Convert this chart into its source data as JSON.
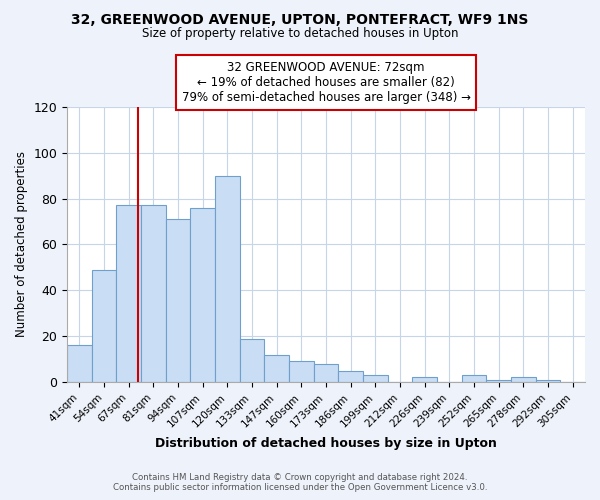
{
  "title": "32, GREENWOOD AVENUE, UPTON, PONTEFRACT, WF9 1NS",
  "subtitle": "Size of property relative to detached houses in Upton",
  "xlabel": "Distribution of detached houses by size in Upton",
  "ylabel": "Number of detached properties",
  "bar_labels": [
    "41sqm",
    "54sqm",
    "67sqm",
    "81sqm",
    "94sqm",
    "107sqm",
    "120sqm",
    "133sqm",
    "147sqm",
    "160sqm",
    "173sqm",
    "186sqm",
    "199sqm",
    "212sqm",
    "226sqm",
    "239sqm",
    "252sqm",
    "265sqm",
    "278sqm",
    "292sqm",
    "305sqm"
  ],
  "bar_values": [
    16,
    49,
    77,
    77,
    71,
    76,
    90,
    19,
    12,
    9,
    8,
    5,
    3,
    0,
    2,
    0,
    3,
    1,
    2,
    1,
    0
  ],
  "bar_color": "#c9ddf5",
  "bar_edge_color": "#6fa0cc",
  "ylim": [
    0,
    120
  ],
  "yticks": [
    0,
    20,
    40,
    60,
    80,
    100,
    120
  ],
  "property_line_label": "32 GREENWOOD AVENUE: 72sqm",
  "annotation_line1": "← 19% of detached houses are smaller (82)",
  "annotation_line2": "79% of semi-detached houses are larger (348) →",
  "vline_color": "#cc0000",
  "footer_line1": "Contains HM Land Registry data © Crown copyright and database right 2024.",
  "footer_line2": "Contains public sector information licensed under the Open Government Licence v3.0.",
  "background_color": "#eef2fa",
  "plot_bg_color": "#ffffff",
  "grid_color": "#c8d4e8"
}
